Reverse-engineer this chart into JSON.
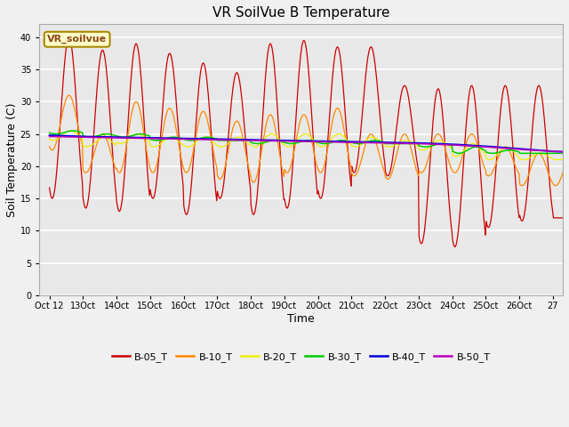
{
  "title": "VR SoilVue B Temperature",
  "xlabel": "Time",
  "ylabel": "Soil Temperature (C)",
  "ylim": [
    0,
    42
  ],
  "yticks": [
    0,
    5,
    10,
    15,
    20,
    25,
    30,
    35,
    40
  ],
  "legend_label": "VR_soilvue",
  "series_colors": {
    "B-05_T": "#cc0000",
    "B-10_T": "#ff8800",
    "B-20_T": "#eeee00",
    "B-30_T": "#00cc00",
    "B-40_T": "#0000dd",
    "B-50_T": "#bb00bb"
  },
  "bg_color": "#e8e8e8",
  "grid_color": "#ffffff",
  "title_fontsize": 11,
  "axis_label_fontsize": 9,
  "tick_fontsize": 7,
  "n_days": 16,
  "pts_per_day": 48,
  "day_peaks_05": [
    40,
    38,
    39,
    37.5,
    36,
    34.5,
    39,
    39.5,
    38.5,
    38.5,
    32.5,
    32,
    32.5,
    32.5,
    32.5,
    12
  ],
  "day_troughs_05": [
    15,
    13.5,
    13,
    15,
    12.5,
    15,
    12.5,
    13.5,
    15,
    19,
    18.5,
    8,
    7.5,
    10.5,
    11.5,
    12
  ],
  "day_peaks_10": [
    31,
    25,
    30,
    29,
    28.5,
    27,
    28,
    28,
    29,
    25,
    25,
    25,
    25,
    23,
    22,
    22
  ],
  "day_troughs_10": [
    22.5,
    19,
    19,
    19,
    19,
    18,
    17.5,
    19,
    19,
    18.5,
    18,
    19,
    19,
    18.5,
    17,
    17
  ],
  "day_peaks_20": [
    25.5,
    24.5,
    25,
    24.5,
    24.5,
    24.5,
    25,
    25,
    25,
    24.5,
    24,
    24,
    23.5,
    23,
    22,
    21.5
  ],
  "day_troughs_20": [
    24,
    23,
    23.5,
    23,
    23,
    23,
    23,
    23,
    23,
    23,
    23,
    22.5,
    21.5,
    21,
    21,
    21
  ],
  "day_peaks_30": [
    25.5,
    25,
    25,
    24.5,
    24.5,
    24,
    24,
    24,
    24,
    24,
    23.5,
    23.5,
    23,
    22.5,
    22,
    22
  ],
  "day_troughs_30": [
    25,
    24.5,
    24.5,
    24,
    24,
    24,
    23.5,
    23.5,
    23.5,
    23.5,
    23.5,
    23,
    22,
    22,
    22,
    22
  ],
  "day_vals_40": [
    24.8,
    24.6,
    24.5,
    24.4,
    24.3,
    24.2,
    24.1,
    24.0,
    23.9,
    23.8,
    23.7,
    23.6,
    23.4,
    23.1,
    22.7,
    22.3,
    22.1
  ],
  "day_vals_50": [
    24.6,
    24.5,
    24.4,
    24.3,
    24.2,
    24.1,
    24.0,
    23.9,
    23.8,
    23.7,
    23.6,
    23.5,
    23.3,
    23.0,
    22.6,
    22.3,
    22.1
  ],
  "peak_hour_05": 14,
  "peak_hour_10": 14,
  "peak_hour_20": 15,
  "peak_hour_30": 17,
  "x_tick_labels": [
    "Oct 12",
    "13Oct",
    "14Oct",
    "15Oct",
    "16Oct",
    "17Oct",
    "18Oct",
    "19Oct",
    "20Oct",
    "21Oct",
    "22Oct",
    "23Oct",
    "24Oct",
    "25Oct",
    "26Oct",
    "27"
  ],
  "figsize": [
    6.4,
    4.8
  ],
  "dpi": 100
}
